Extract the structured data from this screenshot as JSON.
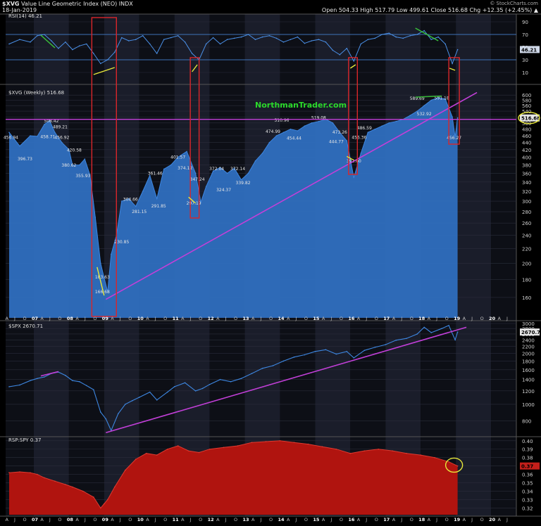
{
  "header": {
    "symbol": "$XVG",
    "name": "Value Line Geometric Index (NEO)",
    "exchange": "INDX",
    "date": "18-Jan-2019",
    "ohlc": "Open 504.33   High 517.79   Low 499.61   Close 516.68   Chg +12.35 (+2.45%) ▲",
    "credit": "© StockCharts.com"
  },
  "watermark": "NorthmanTrader.com",
  "colors": {
    "area": "#2f6fbf",
    "line": "#3d86e0",
    "rsi_line": "#4a8fe6",
    "trend": "#c23fd8",
    "box": "#d9262a",
    "ratio_fill": "#b0140f",
    "green": "#39c13a",
    "yellow": "#e8e83a"
  },
  "x_axis": {
    "labels": [
      "A",
      "J",
      "O",
      "07",
      "A",
      "J",
      "O",
      "08",
      "A",
      "J",
      "O",
      "09",
      "A",
      "J",
      "O",
      "10",
      "A",
      "J",
      "O",
      "11",
      "A",
      "J",
      "O",
      "12",
      "A",
      "J",
      "O",
      "13",
      "A",
      "J",
      "O",
      "14",
      "A",
      "J",
      "O",
      "15",
      "A",
      "J",
      "O",
      "16",
      "A",
      "J",
      "O",
      "17",
      "A",
      "J",
      "O",
      "18",
      "A",
      "J",
      "O",
      "19",
      "A",
      "J",
      "O",
      "20",
      "A",
      "J",
      "O"
    ]
  },
  "chart_data": [
    {
      "type": "line",
      "panel": "rsi",
      "title": "RSI(14) 46.21",
      "ylim": [
        0,
        100
      ],
      "ticks": [
        90,
        70,
        50,
        30,
        10
      ],
      "current_value": "46.21",
      "reference_lines": [
        70,
        30
      ],
      "series": [
        {
          "x": [
            2006.3,
            2006.6,
            2006.9,
            2007.1,
            2007.3,
            2007.5,
            2007.7,
            2007.9,
            2008.1,
            2008.3,
            2008.5,
            2008.7,
            2008.9,
            2009.1,
            2009.3,
            2009.5,
            2009.7,
            2009.9,
            2010.1,
            2010.3,
            2010.5,
            2010.7,
            2010.9,
            2011.1,
            2011.3,
            2011.5,
            2011.7,
            2011.9,
            2012.1,
            2012.3,
            2012.5,
            2012.7,
            2012.9,
            2013.1,
            2013.3,
            2013.5,
            2013.7,
            2013.9,
            2014.1,
            2014.3,
            2014.5,
            2014.7,
            2014.9,
            2015.1,
            2015.3,
            2015.5,
            2015.7,
            2015.9,
            2016.1,
            2016.3,
            2016.5,
            2016.7,
            2016.9,
            2017.1,
            2017.3,
            2017.5,
            2017.7,
            2017.9,
            2018.1,
            2018.3,
            2018.5,
            2018.7,
            2018.9,
            2019.05
          ],
          "values": [
            55,
            62,
            58,
            68,
            70,
            60,
            48,
            58,
            46,
            52,
            55,
            40,
            24,
            30,
            42,
            65,
            60,
            62,
            68,
            55,
            40,
            62,
            65,
            68,
            58,
            40,
            30,
            55,
            65,
            55,
            62,
            64,
            66,
            70,
            62,
            66,
            68,
            64,
            58,
            62,
            66,
            56,
            60,
            62,
            58,
            45,
            38,
            48,
            28,
            55,
            62,
            64,
            70,
            72,
            66,
            64,
            68,
            70,
            76,
            62,
            66,
            55,
            24,
            46
          ]
        }
      ]
    },
    {
      "type": "area",
      "panel": "price",
      "title": "$XVG (Weekly) 516.68",
      "ylim": [
        140,
        620
      ],
      "log_scale": true,
      "ticks": [
        600,
        580,
        560,
        540,
        520,
        500,
        480,
        460,
        440,
        420,
        400,
        380,
        360,
        340,
        320,
        300,
        280,
        260,
        240,
        220,
        200,
        180,
        160
      ],
      "current_value": "516.68",
      "series": [
        {
          "x": [
            2006.3,
            2006.6,
            2006.9,
            2007.1,
            2007.3,
            2007.45,
            2007.6,
            2007.8,
            2008.0,
            2008.1,
            2008.3,
            2008.45,
            2008.6,
            2008.75,
            2008.9,
            2009.0,
            2009.1,
            2009.2,
            2009.35,
            2009.5,
            2009.7,
            2009.9,
            2010.1,
            2010.3,
            2010.5,
            2010.7,
            2010.9,
            2011.1,
            2011.35,
            2011.6,
            2011.75,
            2011.9,
            2012.1,
            2012.3,
            2012.5,
            2012.7,
            2012.9,
            2013.1,
            2013.3,
            2013.5,
            2013.7,
            2013.9,
            2014.1,
            2014.3,
            2014.5,
            2014.7,
            2014.9,
            2015.1,
            2015.3,
            2015.5,
            2015.7,
            2015.9,
            2016.1,
            2016.3,
            2016.5,
            2016.7,
            2016.9,
            2017.1,
            2017.3,
            2017.5,
            2017.7,
            2017.9,
            2018.1,
            2018.3,
            2018.5,
            2018.7,
            2018.9,
            2018.98,
            2019.05
          ],
          "values": [
            470,
            430,
            460,
            458,
            495,
            508,
            470,
            440,
            420,
            380,
            380,
            395,
            356,
            270,
            200,
            182,
            166,
            212,
            240,
            300,
            305,
            290,
            320,
            355,
            305,
            370,
            380,
            400,
            415,
            360,
            298,
            330,
            365,
            374,
            360,
            372,
            345,
            360,
            390,
            410,
            440,
            460,
            470,
            480,
            475,
            490,
            500,
            505,
            512,
            500,
            470,
            445,
            350,
            410,
            470,
            480,
            490,
            500,
            505,
            512,
            525,
            540,
            560,
            580,
            590,
            585,
            520,
            456,
            517
          ]
        }
      ],
      "labels": [
        {
          "x": 2006.3,
          "value": "456.94"
        },
        {
          "x": 2006.7,
          "value": "396.73"
        },
        {
          "x": 2007.45,
          "value": "508.42"
        },
        {
          "x": 2007.7,
          "value": "489.21"
        },
        {
          "x": 2007.35,
          "value": "458.71"
        },
        {
          "x": 2007.75,
          "value": "456.92"
        },
        {
          "x": 2008.1,
          "value": "420.58"
        },
        {
          "x": 2007.95,
          "value": "380.62"
        },
        {
          "x": 2008.35,
          "value": "355.93"
        },
        {
          "x": 2008.9,
          "value": "183.63"
        },
        {
          "x": 2008.9,
          "value": "166.68"
        },
        {
          "x": 2009.45,
          "value": "230.85"
        },
        {
          "x": 2009.7,
          "value": "304.66"
        },
        {
          "x": 2009.95,
          "value": "281.15"
        },
        {
          "x": 2010.4,
          "value": "361.46"
        },
        {
          "x": 2010.5,
          "value": "291.85"
        },
        {
          "x": 2011.05,
          "value": "401.57"
        },
        {
          "x": 2011.25,
          "value": "374.12"
        },
        {
          "x": 2011.6,
          "value": "347.24"
        },
        {
          "x": 2011.5,
          "value": "297.19"
        },
        {
          "x": 2012.15,
          "value": "372.04"
        },
        {
          "x": 2012.75,
          "value": "372.14"
        },
        {
          "x": 2012.35,
          "value": "324.37"
        },
        {
          "x": 2012.9,
          "value": "339.82"
        },
        {
          "x": 2014.0,
          "value": "510.96"
        },
        {
          "x": 2013.75,
          "value": "474.99"
        },
        {
          "x": 2014.35,
          "value": "454.44"
        },
        {
          "x": 2015.05,
          "value": "519.08"
        },
        {
          "x": 2015.65,
          "value": "473.26"
        },
        {
          "x": 2015.55,
          "value": "444.77"
        },
        {
          "x": 2016.05,
          "value": "392.00"
        },
        {
          "x": 2016.35,
          "value": "486.59"
        },
        {
          "x": 2016.2,
          "value": "456.36"
        },
        {
          "x": 2017.85,
          "value": "589.69"
        },
        {
          "x": 2018.55,
          "value": "591.18"
        },
        {
          "x": 2018.05,
          "value": "532.92"
        },
        {
          "x": 2018.9,
          "value": "456.27"
        }
      ]
    },
    {
      "type": "line",
      "panel": "spx",
      "title": "$SPX 2670.71",
      "ylim": [
        650,
        3000
      ],
      "log_scale": true,
      "ticks": [
        3000,
        2800,
        2600,
        2400,
        2200,
        2000,
        1800,
        1600,
        1400,
        1200,
        1000,
        800
      ],
      "current_value": "2670.71",
      "series": [
        {
          "x": [
            2006.3,
            2006.6,
            2006.9,
            2007.1,
            2007.3,
            2007.5,
            2007.7,
            2007.9,
            2008.1,
            2008.3,
            2008.5,
            2008.7,
            2008.9,
            2009.05,
            2009.2,
            2009.4,
            2009.6,
            2009.8,
            2010.0,
            2010.3,
            2010.5,
            2010.8,
            2011.0,
            2011.3,
            2011.6,
            2011.8,
            2012.0,
            2012.3,
            2012.6,
            2012.9,
            2013.2,
            2013.5,
            2013.8,
            2014.1,
            2014.4,
            2014.7,
            2015.0,
            2015.3,
            2015.6,
            2015.9,
            2016.1,
            2016.4,
            2016.7,
            2017.0,
            2017.3,
            2017.6,
            2017.9,
            2018.1,
            2018.3,
            2018.6,
            2018.8,
            2018.98,
            2019.05
          ],
          "values": [
            1270,
            1300,
            1380,
            1420,
            1450,
            1520,
            1550,
            1480,
            1380,
            1360,
            1290,
            1220,
            900,
            820,
            700,
            880,
            1000,
            1050,
            1100,
            1180,
            1060,
            1180,
            1270,
            1340,
            1200,
            1240,
            1310,
            1400,
            1360,
            1420,
            1520,
            1630,
            1690,
            1800,
            1900,
            1960,
            2050,
            2100,
            1980,
            2050,
            1880,
            2080,
            2170,
            2250,
            2390,
            2450,
            2600,
            2850,
            2650,
            2800,
            2920,
            2400,
            2670
          ]
        }
      ]
    },
    {
      "type": "area",
      "panel": "ratio",
      "title": "RSP:SPY 0.37",
      "ylim": [
        0.312,
        0.404
      ],
      "ticks": [
        0.4,
        0.39,
        0.38,
        0.37,
        0.36,
        0.35,
        0.34,
        0.33,
        0.32
      ],
      "current_value": "0.37",
      "series": [
        {
          "x": [
            2006.3,
            2006.6,
            2006.9,
            2007.1,
            2007.3,
            2007.6,
            2007.9,
            2008.1,
            2008.4,
            2008.7,
            2008.9,
            2009.0,
            2009.1,
            2009.3,
            2009.6,
            2009.9,
            2010.2,
            2010.5,
            2010.8,
            2011.1,
            2011.4,
            2011.7,
            2012.0,
            2012.4,
            2012.8,
            2013.2,
            2013.6,
            2014.0,
            2014.4,
            2014.8,
            2015.2,
            2015.6,
            2016.0,
            2016.4,
            2016.8,
            2017.2,
            2017.6,
            2018.0,
            2018.4,
            2018.8,
            2019.05
          ],
          "values": [
            0.362,
            0.363,
            0.362,
            0.36,
            0.356,
            0.352,
            0.348,
            0.345,
            0.34,
            0.333,
            0.32,
            0.325,
            0.33,
            0.345,
            0.365,
            0.378,
            0.385,
            0.383,
            0.39,
            0.394,
            0.388,
            0.386,
            0.39,
            0.392,
            0.394,
            0.398,
            0.399,
            0.4,
            0.398,
            0.396,
            0.393,
            0.39,
            0.385,
            0.388,
            0.39,
            0.388,
            0.385,
            0.383,
            0.38,
            0.375,
            0.37
          ]
        }
      ]
    }
  ]
}
